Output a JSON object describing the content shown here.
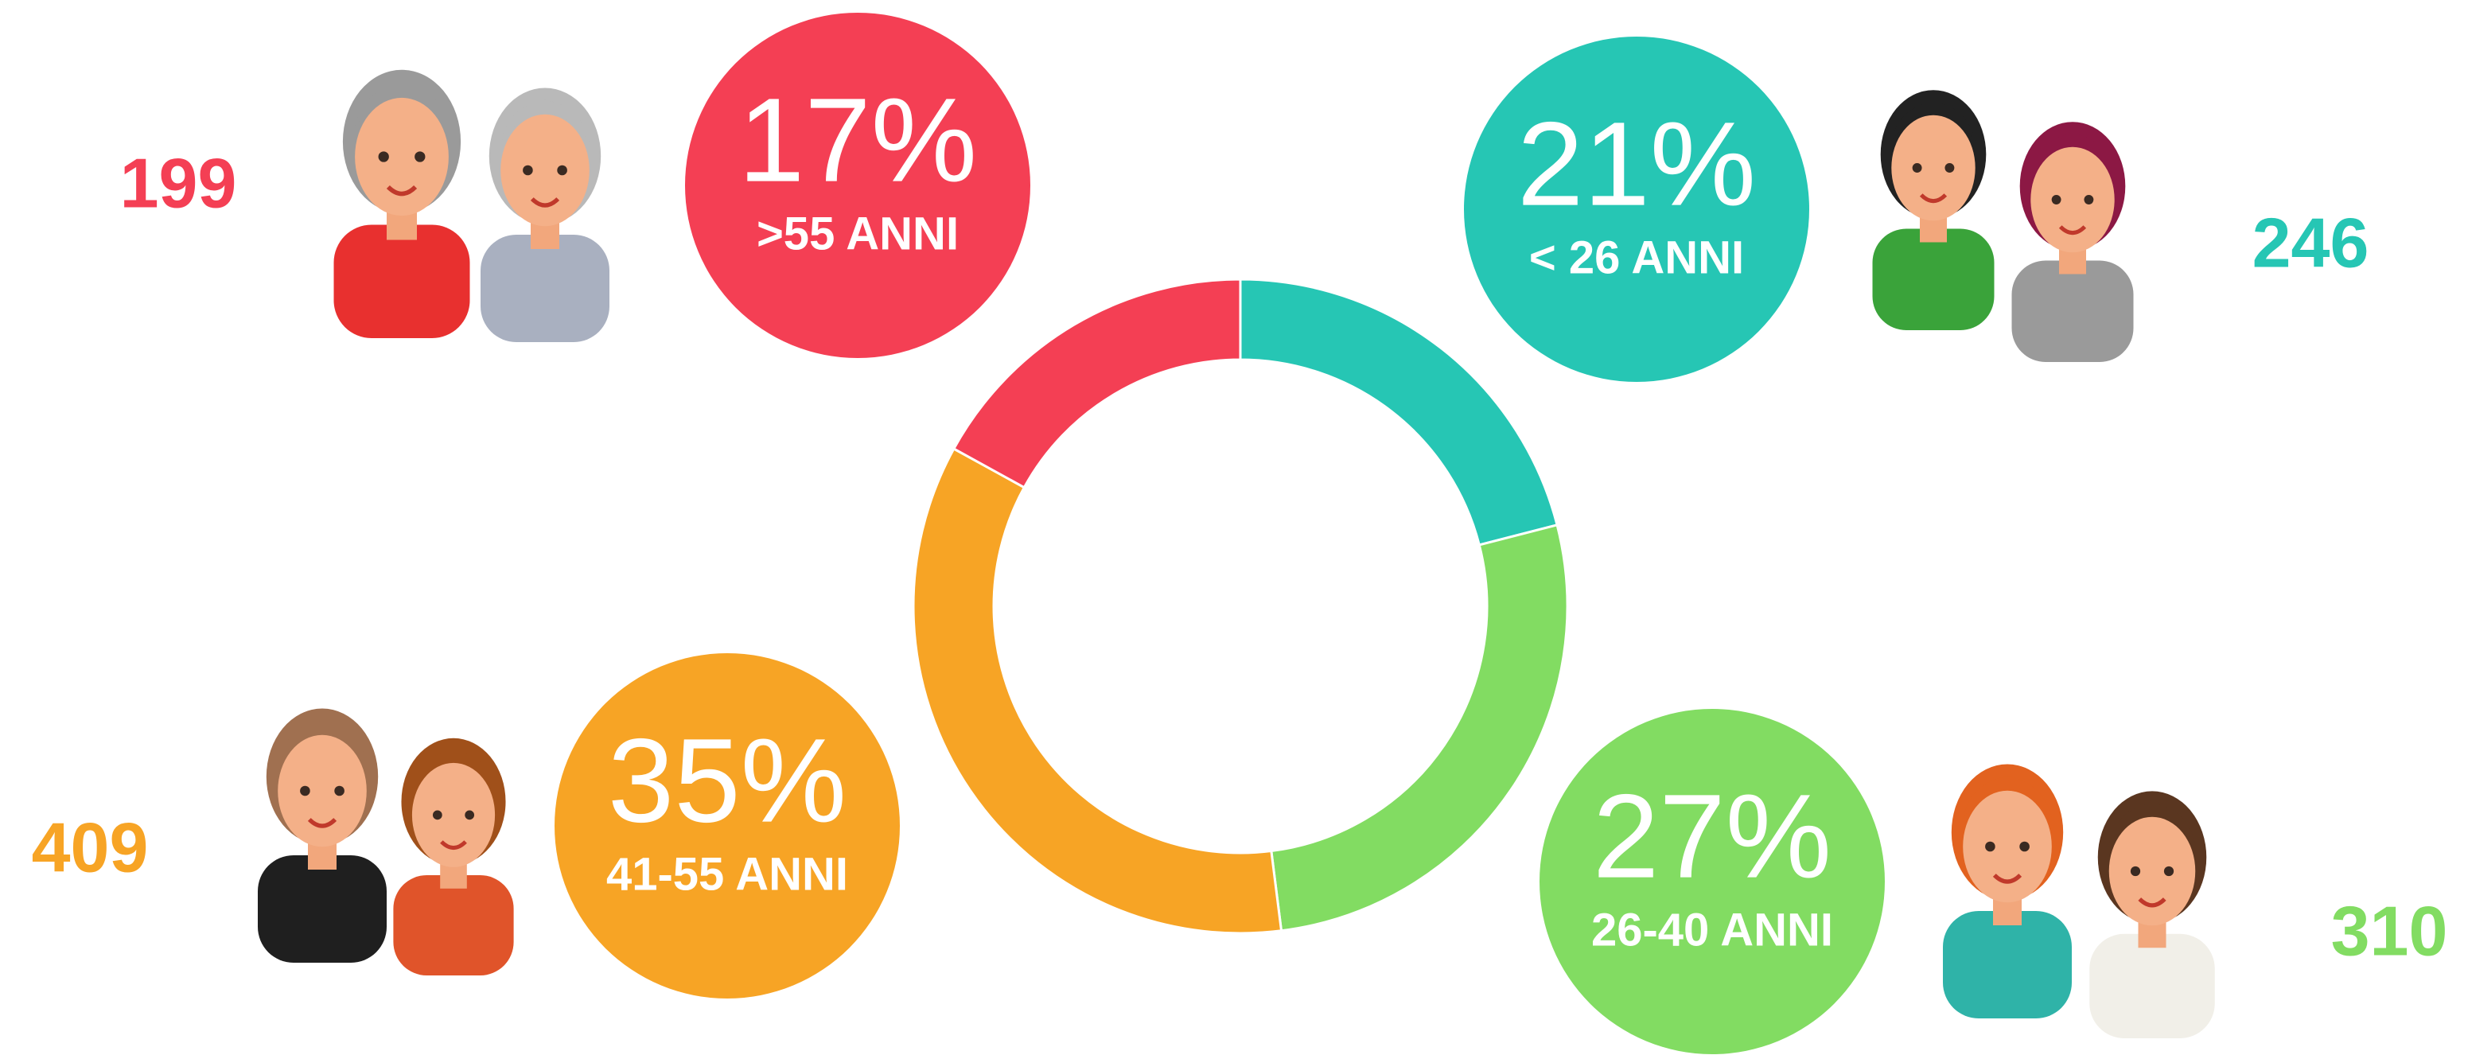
{
  "chart_data": {
    "type": "donut",
    "categories": [
      "< 26 ANNI",
      "26-40 ANNI",
      "41-55 ANNI",
      ">55 ANNI"
    ],
    "values": [
      21,
      27,
      35,
      17
    ],
    "value_labels": [
      "21%",
      "27%",
      "35%",
      "17%"
    ],
    "counts": [
      246,
      310,
      409,
      199
    ],
    "colors": [
      "#26c6b4",
      "#82dc62",
      "#f7a425",
      "#f43f54"
    ]
  }
}
